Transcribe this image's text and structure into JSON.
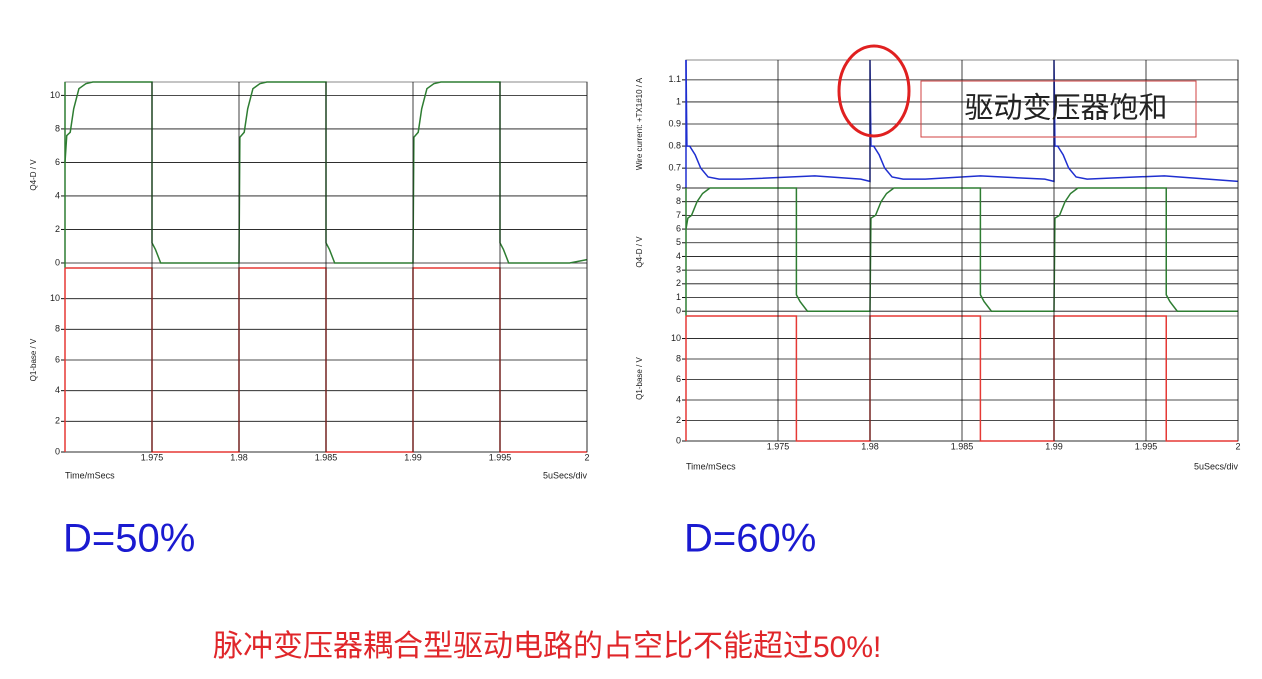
{
  "chart_data": [
    {
      "type": "line",
      "xlabel": "Time/mSecs",
      "scale_label": "5uSecs/div",
      "duty_label": "D=50%",
      "xlim": [
        1.97,
        2.0
      ],
      "xticks": [
        1.975,
        1.98,
        1.985,
        1.99,
        1.995,
        2
      ],
      "grid": true,
      "panels": [
        {
          "ylabel": "Q4-D / V",
          "ylim": [
            -0.3,
            10.8
          ],
          "yticks": [
            0,
            2,
            4,
            6,
            8,
            10
          ],
          "series": [
            {
              "color": "#2e7d32",
              "x": [
                1.97,
                1.9701,
                1.9703,
                1.9705,
                1.9708,
                1.9712,
                1.9716,
                1.975,
                1.975,
                1.9752,
                1.9755,
                1.98,
                1.98005,
                1.9803,
                1.9805,
                1.9808,
                1.9812,
                1.9816,
                1.985,
                1.985,
                1.9852,
                1.9855,
                1.99,
                1.99005,
                1.9903,
                1.9905,
                1.9908,
                1.9912,
                1.9916,
                1.995,
                1.995,
                1.9952,
                1.9955,
                1.999,
                2.0
              ],
              "values": [
                6,
                7.6,
                7.8,
                9.2,
                10.4,
                10.7,
                10.8,
                10.8,
                1.2,
                0.8,
                0,
                0,
                7.5,
                7.8,
                9.2,
                10.4,
                10.7,
                10.8,
                10.8,
                1.2,
                0.8,
                0,
                0,
                7.5,
                7.8,
                9.2,
                10.4,
                10.7,
                10.8,
                10.8,
                1.2,
                0.8,
                0,
                0,
                0.2
              ]
            }
          ]
        },
        {
          "ylabel": "Q1-base / V",
          "ylim": [
            0,
            12
          ],
          "yticks": [
            0,
            2,
            4,
            6,
            8,
            10
          ],
          "series": [
            {
              "color": "#e53935",
              "x": [
                1.97,
                1.975,
                1.975,
                1.98,
                1.98,
                1.985,
                1.985,
                1.99,
                1.99,
                1.995,
                1.995,
                2.0
              ],
              "values": [
                12,
                12,
                0,
                0,
                12,
                12,
                0,
                0,
                12,
                12,
                0,
                0
              ]
            }
          ]
        }
      ]
    },
    {
      "type": "line",
      "xlabel": "Time/mSecs",
      "scale_label": "5uSecs/div",
      "duty_label": "D=60%",
      "annotation": "驱动变压器饱和",
      "xlim": [
        1.97,
        2.0
      ],
      "xticks": [
        1.975,
        1.98,
        1.985,
        1.99,
        1.995,
        2
      ],
      "grid": true,
      "panels": [
        {
          "ylabel": "Wire current: +TX1#10 / A",
          "ylim": [
            0.61,
            1.19
          ],
          "yticks": [
            0.7,
            0.8,
            0.9,
            1,
            1.1
          ],
          "series": [
            {
              "color": "#1f2fd0",
              "x": [
                1.97,
                1.97005,
                1.9702,
                1.9705,
                1.9708,
                1.9712,
                1.9718,
                1.973,
                1.977,
                1.9795,
                1.98,
                1.98,
                1.98005,
                1.9802,
                1.9805,
                1.9808,
                1.9812,
                1.9818,
                1.983,
                1.986,
                1.9895,
                1.99,
                1.99,
                1.99005,
                1.9902,
                1.9905,
                1.9908,
                1.9912,
                1.9918,
                1.993,
                1.996,
                2.0
              ],
              "values": [
                1.19,
                0.8,
                0.8,
                0.76,
                0.7,
                0.66,
                0.65,
                0.65,
                0.665,
                0.65,
                0.64,
                1.19,
                0.8,
                0.8,
                0.76,
                0.7,
                0.66,
                0.65,
                0.65,
                0.665,
                0.65,
                0.64,
                1.19,
                0.8,
                0.8,
                0.76,
                0.7,
                0.66,
                0.65,
                0.655,
                0.665,
                0.64
              ]
            }
          ]
        },
        {
          "ylabel": "Q4-D / V",
          "ylim": [
            -0.35,
            9
          ],
          "yticks": [
            0,
            1,
            2,
            3,
            4,
            5,
            6,
            7,
            8,
            9
          ],
          "series": [
            {
              "color": "#2e7d32",
              "x": [
                1.97,
                1.9701,
                1.9703,
                1.9706,
                1.9709,
                1.9713,
                1.976,
                1.976,
                1.9762,
                1.9766,
                1.98,
                1.98005,
                1.9803,
                1.9806,
                1.9809,
                1.9813,
                1.986,
                1.986,
                1.9862,
                1.9866,
                1.99,
                1.99005,
                1.9903,
                1.9906,
                1.9909,
                1.9913,
                1.9961,
                1.9961,
                1.9963,
                1.9967,
                2.0
              ],
              "values": [
                6,
                6.8,
                7,
                8,
                8.6,
                9,
                9,
                1.2,
                0.7,
                0,
                0,
                6.8,
                7,
                8,
                8.6,
                9,
                9,
                1.2,
                0.7,
                0,
                0,
                6.8,
                7,
                8,
                8.6,
                9,
                9,
                1.2,
                0.7,
                0,
                0
              ]
            }
          ]
        },
        {
          "ylabel": "Q1-base / V",
          "ylim": [
            0,
            12.2
          ],
          "yticks": [
            0,
            2,
            4,
            6,
            8,
            10
          ],
          "series": [
            {
              "color": "#e53935",
              "x": [
                1.97,
                1.976,
                1.976,
                1.98,
                1.98,
                1.986,
                1.986,
                1.99,
                1.99,
                1.9961,
                1.9961,
                2.0
              ],
              "values": [
                12.2,
                12.2,
                0,
                0,
                12.2,
                12.2,
                0,
                0,
                12.2,
                12.2,
                0,
                0
              ]
            }
          ]
        }
      ]
    }
  ],
  "caption": {
    "text": "脉冲变压器耦合型驱动电路的占空比不能超过",
    "emphasis": "50%!"
  }
}
